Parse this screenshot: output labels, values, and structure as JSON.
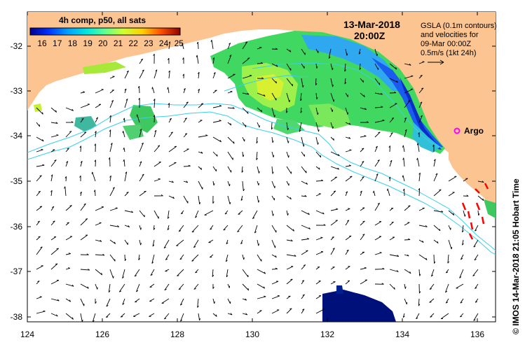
{
  "map": {
    "date": "13-Mar-2018",
    "time": "20:00Z",
    "colorbar": {
      "title": "4h comp, p50, all sats",
      "ticks": [
        "16",
        "17",
        "18",
        "19",
        "20",
        "21",
        "22",
        "23",
        "24",
        "25"
      ],
      "colors": [
        "#00008f",
        "#0020ff",
        "#0090ff",
        "#00e0ff",
        "#50ff90",
        "#c0ff30",
        "#ffe000",
        "#ff8000",
        "#ff2000",
        "#900000"
      ]
    },
    "legend": {
      "line1": "GSLA (0.1m contours)",
      "line2": "and velocities for",
      "line3": "09-Mar 00:00Z",
      "line4": "0.5m/s (1kt 24h)"
    },
    "argo_label": "Argo",
    "credit": "© IMOS 14-Mar-2018 21:05 Hobart Time",
    "x_ticks": [
      "124",
      "126",
      "128",
      "130",
      "132",
      "134",
      "136"
    ],
    "y_ticks": [
      "-32",
      "-33",
      "-34",
      "-35",
      "-36",
      "-37",
      "-38"
    ],
    "colors": {
      "land": "#fcc491",
      "contour": "#3ad0e8",
      "argo": "#ff00ff",
      "arrow": "#000000",
      "ship": "#ff0000"
    }
  }
}
